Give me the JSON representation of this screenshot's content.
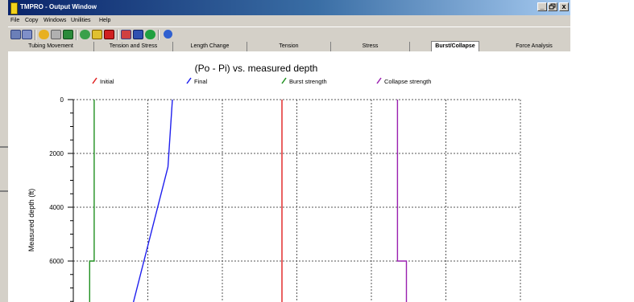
{
  "window": {
    "title": "TMPRO - Output Window",
    "controls": {
      "minimize": "_",
      "restore": "3",
      "close": "x"
    }
  },
  "menu": [
    "File",
    "Copy",
    "Windows",
    "Unilities",
    "Help"
  ],
  "toolbar": {
    "icons": [
      "open-file-icon",
      "save-file-icon",
      "hand-icon",
      "print-icon",
      "export-icon",
      "refresh-icon",
      "trophy-icon",
      "no-entry-icon",
      "chart-icon",
      "monitor-icon",
      "globe-icon",
      "help-icon"
    ]
  },
  "tabs": [
    {
      "label": "Tubing Movement",
      "active": false
    },
    {
      "label": "Tension and Stress",
      "active": false
    },
    {
      "label": "Length Change",
      "active": false
    },
    {
      "label": "Tension",
      "active": false
    },
    {
      "label": "Stress",
      "active": false
    },
    {
      "label": "Burst/Collapse",
      "active": true
    },
    {
      "label": "Force Analysis",
      "active": false
    }
  ],
  "colors": {
    "initial": "#e02020",
    "final": "#2020ee",
    "burst": "#209020",
    "collapse": "#9a20b0",
    "grid": "#555555"
  },
  "chart_data": {
    "type": "line",
    "title": "(Po - Pi) vs. measured depth",
    "ylabel": "Measured depth (ft)",
    "xlabel": "",
    "ylim": [
      0,
      7600
    ],
    "y_reversed": true,
    "yticks": [
      "0",
      "2000",
      "4000",
      "6000"
    ],
    "x_gridlines": 6,
    "grid": true,
    "legend_position": "top",
    "series": [
      {
        "name": "Initial",
        "color": "#e02020",
        "x": [
          2.8,
          2.8
        ],
        "y": [
          0,
          7600
        ]
      },
      {
        "name": "Final",
        "color": "#2020ee",
        "x": [
          1.33,
          1.27,
          0.8
        ],
        "y": [
          0,
          2500,
          7600
        ]
      },
      {
        "name": "Burst strength",
        "color": "#209020",
        "x": [
          0.28,
          0.28,
          0.22,
          0.22
        ],
        "y": [
          0,
          6000,
          6000,
          7600
        ]
      },
      {
        "name": "Collapse strength",
        "color": "#9a20b0",
        "x": [
          4.35,
          4.35,
          4.47,
          4.47
        ],
        "y": [
          0,
          6000,
          6000,
          7600
        ]
      }
    ]
  }
}
